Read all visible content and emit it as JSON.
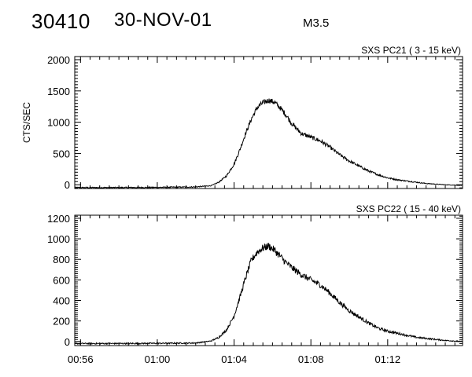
{
  "header": {
    "event_id": "30410",
    "date": "30-NOV-01",
    "flare_class": "M3.5"
  },
  "colors": {
    "line": "#000000",
    "background": "#ffffff"
  },
  "chart_data": [
    {
      "type": "line",
      "title": "SXS PC21  (  3 - 15 keV)",
      "ylabel": "CTS/SEC",
      "xlabel": "",
      "xlim": [
        "00:55:42",
        "01:15:54"
      ],
      "ylim": [
        -60,
        2050
      ],
      "yticks": [
        0,
        500,
        1000,
        1500,
        2000
      ],
      "xticks": [
        "00:56",
        "01:00",
        "01:04",
        "01:08",
        "01:12"
      ],
      "show_xtick_labels": false,
      "grid": false,
      "series": [
        {
          "x": [
            "00:55:42",
            "00:58:00",
            "01:00:00",
            "01:02:00",
            "01:02:48",
            "01:03:12",
            "01:03:36",
            "01:04:00",
            "01:04:18",
            "01:04:36",
            "01:04:54",
            "01:05:12",
            "01:05:30",
            "01:05:48",
            "01:06:06",
            "01:06:24",
            "01:06:42",
            "01:07:00",
            "01:07:30",
            "01:08:00",
            "01:08:30",
            "01:09:00",
            "01:09:30",
            "01:10:00",
            "01:10:30",
            "01:11:00",
            "01:11:30",
            "01:12:00",
            "01:12:30",
            "01:13:00",
            "01:13:30",
            "01:14:00",
            "01:14:30",
            "01:15:00",
            "01:15:54"
          ],
          "values": [
            -45,
            -45,
            -42,
            -35,
            -15,
            40,
            140,
            330,
            560,
            820,
            1050,
            1230,
            1310,
            1350,
            1320,
            1230,
            1120,
            980,
            820,
            760,
            700,
            600,
            480,
            380,
            300,
            220,
            160,
            110,
            80,
            60,
            40,
            20,
            10,
            0,
            -10
          ]
        }
      ]
    },
    {
      "type": "line",
      "title": "SXS PC22  ( 15 - 40 keV)",
      "ylabel": "",
      "xlabel": "",
      "xlim": [
        "00:55:42",
        "01:15:54"
      ],
      "ylim": [
        -40,
        1230
      ],
      "yticks": [
        0,
        200,
        400,
        600,
        800,
        1000,
        1200
      ],
      "xticks": [
        "00:56",
        "01:00",
        "01:04",
        "01:08",
        "01:12"
      ],
      "show_xtick_labels": true,
      "grid": false,
      "series": [
        {
          "x": [
            "00:55:42",
            "00:58:00",
            "01:00:00",
            "01:02:00",
            "01:02:48",
            "01:03:12",
            "01:03:36",
            "01:04:00",
            "01:04:18",
            "01:04:36",
            "01:04:54",
            "01:05:12",
            "01:05:30",
            "01:05:48",
            "01:06:06",
            "01:06:24",
            "01:06:42",
            "01:07:00",
            "01:07:30",
            "01:08:00",
            "01:08:30",
            "01:09:00",
            "01:09:30",
            "01:10:00",
            "01:10:30",
            "01:11:00",
            "01:11:30",
            "01:12:00",
            "01:12:30",
            "01:13:00",
            "01:13:30",
            "01:14:00",
            "01:14:30",
            "01:15:00",
            "01:15:54"
          ],
          "values": [
            -20,
            -20,
            -18,
            -15,
            5,
            40,
            110,
            250,
            430,
            620,
            790,
            870,
            910,
            930,
            890,
            830,
            770,
            720,
            650,
            600,
            550,
            470,
            380,
            300,
            240,
            180,
            130,
            100,
            80,
            60,
            40,
            30,
            20,
            10,
            0
          ]
        }
      ]
    }
  ]
}
